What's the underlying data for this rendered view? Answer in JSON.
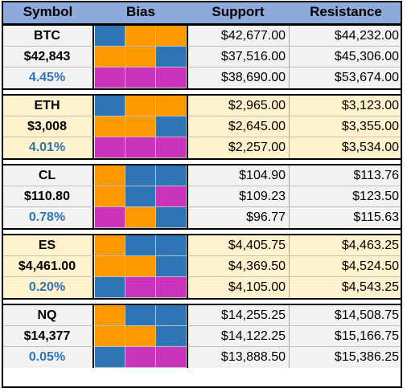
{
  "colors": {
    "header_bg": "#8eaadb",
    "blue": "#2e75b6",
    "orange": "#ff9900",
    "magenta": "#cc33bb",
    "group_bg_gray": "#f2f2f2",
    "group_bg_cream": "#fff2cc",
    "percent_text": "#2e75b6"
  },
  "header": {
    "symbol": "Symbol",
    "bias": "Bias",
    "support": "Support",
    "resistance": "Resistance"
  },
  "groups": [
    {
      "bg": "gray",
      "rows": [
        {
          "label": "BTC",
          "kind": "ticker",
          "bias": [
            "blue",
            "orange",
            "orange"
          ],
          "support": "$42,677.00",
          "resistance": "$44,232.00"
        },
        {
          "label": "$42,843",
          "kind": "price",
          "bias": [
            "orange",
            "orange",
            "blue"
          ],
          "support": "$37,516.00",
          "resistance": "$45,306.00"
        },
        {
          "label": "4.45%",
          "kind": "pct",
          "bias": [
            "magenta",
            "magenta",
            "magenta"
          ],
          "support": "$38,690.00",
          "resistance": "$53,674.00"
        }
      ]
    },
    {
      "bg": "cream",
      "rows": [
        {
          "label": "ETH",
          "kind": "ticker",
          "bias": [
            "blue",
            "orange",
            "orange"
          ],
          "support": "$2,965.00",
          "resistance": "$3,123.00"
        },
        {
          "label": "$3,008",
          "kind": "price",
          "bias": [
            "orange",
            "orange",
            "blue"
          ],
          "support": "$2,645.00",
          "resistance": "$3,355.00"
        },
        {
          "label": "4.01%",
          "kind": "pct",
          "bias": [
            "magenta",
            "magenta",
            "magenta"
          ],
          "support": "$2,257.00",
          "resistance": "$3,534.00"
        }
      ]
    },
    {
      "bg": "gray",
      "rows": [
        {
          "label": "CL",
          "kind": "ticker",
          "bias": [
            "orange",
            "blue",
            "blue"
          ],
          "support": "$104.90",
          "resistance": "$113.76"
        },
        {
          "label": "$110.80",
          "kind": "price",
          "bias": [
            "orange",
            "blue",
            "magenta"
          ],
          "support": "$109.23",
          "resistance": "$123.50"
        },
        {
          "label": "0.78%",
          "kind": "pct",
          "bias": [
            "magenta",
            "orange",
            "blue"
          ],
          "support": "$96.77",
          "resistance": "$115.63"
        }
      ]
    },
    {
      "bg": "cream",
      "rows": [
        {
          "label": "ES",
          "kind": "ticker",
          "bias": [
            "orange",
            "blue",
            "blue"
          ],
          "support": "$4,405.75",
          "resistance": "$4,463.25"
        },
        {
          "label": "$4,461.00",
          "kind": "price",
          "bias": [
            "orange",
            "orange",
            "blue"
          ],
          "support": "$4,369.50",
          "resistance": "$4,524.50"
        },
        {
          "label": "0.20%",
          "kind": "pct",
          "bias": [
            "blue",
            "magenta",
            "magenta"
          ],
          "support": "$4,105.00",
          "resistance": "$4,543.25"
        }
      ]
    },
    {
      "bg": "gray",
      "rows": [
        {
          "label": "NQ",
          "kind": "ticker",
          "bias": [
            "orange",
            "blue",
            "blue"
          ],
          "support": "$14,255.25",
          "resistance": "$14,508.75"
        },
        {
          "label": "$14,377",
          "kind": "price",
          "bias": [
            "orange",
            "orange",
            "blue"
          ],
          "support": "$14,122.25",
          "resistance": "$15,166.75"
        },
        {
          "label": "0.05%",
          "kind": "pct",
          "bias": [
            "blue",
            "magenta",
            "magenta"
          ],
          "support": "$13,888.50",
          "resistance": "$15,386.25"
        }
      ]
    }
  ]
}
